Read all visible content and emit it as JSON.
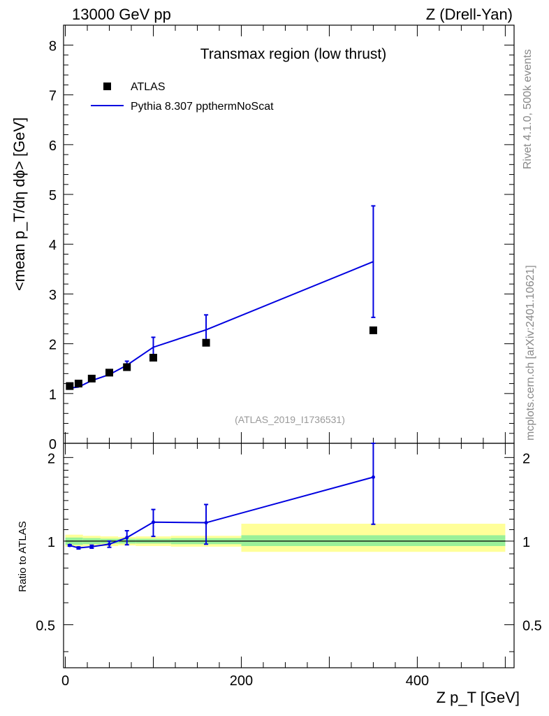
{
  "header": {
    "left": "13000 GeV pp",
    "right": "Z (Drell-Yan)"
  },
  "side": {
    "rivet": "Rivet 4.1.0,  500k events",
    "mcplots": "mcplots.cern.ch [arXiv:2401.10621]"
  },
  "chart_data": {
    "type": "line",
    "title": "Transmax region (low thrust)",
    "analysis_label": "(ATLAS_2019_I1736531)",
    "xlabel": "Z p_T [GeV]",
    "ylabel": "<mean p_T/dη dϕ> [GeV]",
    "ratio_ylabel": "Ratio to ATLAS",
    "xlim": [
      -2,
      510
    ],
    "ylim": [
      0,
      8.4
    ],
    "ratio_ylim": [
      0.35,
      2.25
    ],
    "x_ticks": [
      0,
      200,
      400
    ],
    "y_ticks": [
      0,
      1,
      2,
      3,
      4,
      5,
      6,
      7,
      8
    ],
    "ratio_ticks": [
      0.5,
      1,
      2
    ],
    "legend": {
      "position": "top-left",
      "data_label": "ATLAS",
      "mc_label": "Pythia 8.307 ppthermNoScat"
    },
    "colors": {
      "data": "#000000",
      "mc": "#0000e0",
      "band_inner": "#99f099",
      "band_outer": "#ffff99"
    },
    "data": {
      "name": "ATLAS",
      "x": [
        5,
        15,
        30,
        50,
        70,
        100,
        160,
        350
      ],
      "y": [
        1.15,
        1.2,
        1.3,
        1.42,
        1.53,
        1.72,
        2.02,
        2.27
      ]
    },
    "mc": {
      "name": "Pythia 8.307 ppthermNoScat",
      "x": [
        5,
        15,
        30,
        50,
        70,
        100,
        160,
        350
      ],
      "y": [
        1.11,
        1.13,
        1.26,
        1.38,
        1.57,
        1.93,
        2.28,
        3.65
      ],
      "yerr": [
        0.02,
        0.02,
        0.03,
        0.04,
        0.08,
        0.2,
        0.3,
        1.12
      ]
    },
    "ratio": {
      "x": [
        5,
        15,
        30,
        50,
        70,
        100,
        160,
        350
      ],
      "y": [
        0.965,
        0.945,
        0.955,
        0.975,
        1.03,
        1.17,
        1.165,
        1.7
      ],
      "yerr": [
        0.006,
        0.008,
        0.012,
        0.025,
        0.06,
        0.13,
        0.19,
        0.55
      ]
    },
    "bins": [
      {
        "lo": 0,
        "hi": 20,
        "inner": [
          0.97,
          1.03
        ],
        "outer": [
          0.955,
          1.055
        ]
      },
      {
        "lo": 20,
        "hi": 40,
        "inner": [
          0.975,
          1.025
        ],
        "outer": [
          0.96,
          1.045
        ]
      },
      {
        "lo": 40,
        "hi": 60,
        "inner": [
          0.98,
          1.02
        ],
        "outer": [
          0.96,
          1.04
        ]
      },
      {
        "lo": 60,
        "hi": 80,
        "inner": [
          0.98,
          1.02
        ],
        "outer": [
          0.965,
          1.035
        ]
      },
      {
        "lo": 80,
        "hi": 120,
        "inner": [
          0.98,
          1.02
        ],
        "outer": [
          0.96,
          1.04
        ]
      },
      {
        "lo": 120,
        "hi": 200,
        "inner": [
          0.975,
          1.025
        ],
        "outer": [
          0.955,
          1.045
        ]
      },
      {
        "lo": 200,
        "hi": 500,
        "inner": [
          0.96,
          1.05
        ],
        "outer": [
          0.915,
          1.155
        ]
      }
    ]
  }
}
